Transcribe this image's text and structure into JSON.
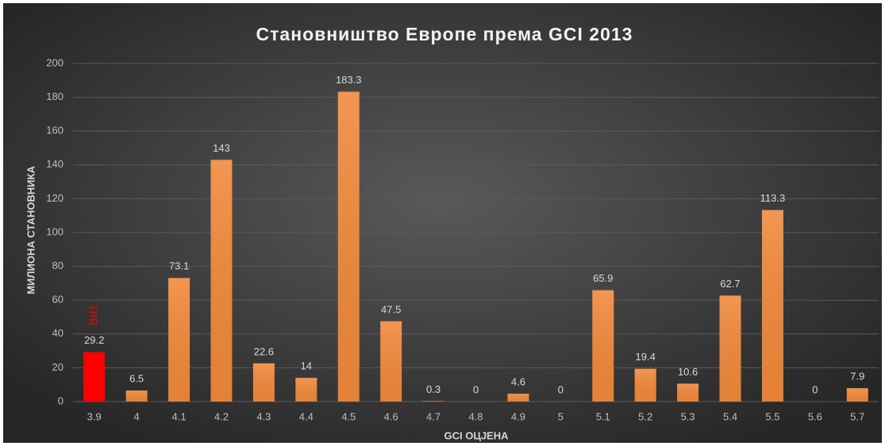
{
  "chart_data": {
    "type": "bar",
    "title": "Становништво Европе према GCI 2013",
    "xlabel": "GCI ОЦЈЕНА",
    "ylabel": "МИЛИОНА СТАНОВНИКА",
    "categories": [
      "3.9",
      "4",
      "4.1",
      "4.2",
      "4.3",
      "4.4",
      "4.5",
      "4.6",
      "4.7",
      "4.8",
      "4.9",
      "5",
      "5.1",
      "5.2",
      "5.3",
      "5.4",
      "5.5",
      "5.6",
      "5.7"
    ],
    "values": [
      29.2,
      6.5,
      73.1,
      143,
      22.6,
      14,
      183.3,
      47.5,
      0.3,
      0,
      4.6,
      0,
      65.9,
      19.4,
      10.6,
      62.7,
      113.3,
      0,
      7.9
    ],
    "colors": [
      "#ff0000",
      "#f0883a",
      "#f0883a",
      "#f0883a",
      "#f0883a",
      "#f0883a",
      "#f0883a",
      "#f0883a",
      "#f0883a",
      "#f0883a",
      "#f0883a",
      "#f0883a",
      "#f0883a",
      "#f0883a",
      "#f0883a",
      "#f0883a",
      "#f0883a",
      "#f0883a",
      "#f0883a"
    ],
    "annotations": [
      {
        "text": "BiH",
        "category": "3.9",
        "color": "#ff0000"
      }
    ],
    "ylim": [
      0,
      200
    ],
    "yticks": [
      0,
      20,
      40,
      60,
      80,
      100,
      120,
      140,
      160,
      180,
      200
    ],
    "grid": true
  }
}
